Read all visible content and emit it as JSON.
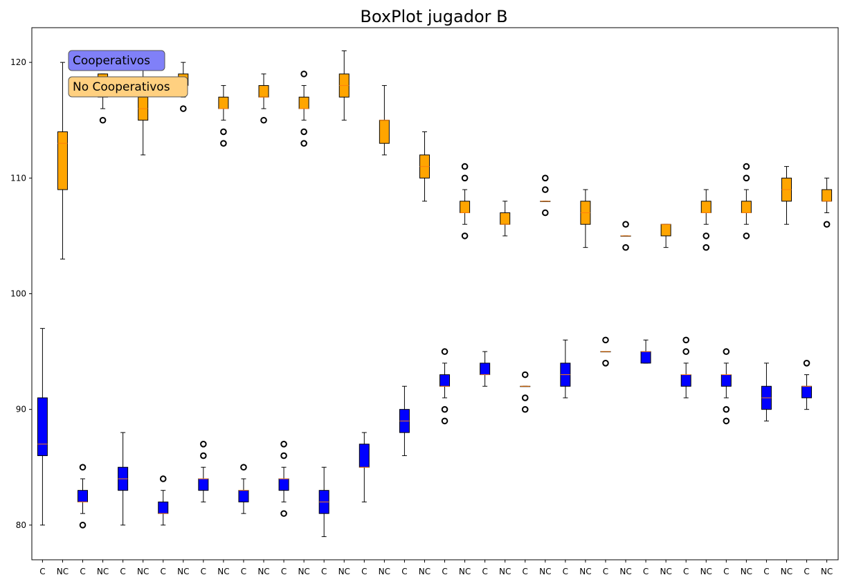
{
  "chart_data": {
    "type": "box",
    "title": "BoxPlot jugador B",
    "xlabel": "",
    "ylabel": "",
    "ylim": [
      77,
      123
    ],
    "yticks": [
      80,
      90,
      100,
      110,
      120
    ],
    "categories": [
      "C",
      "NC",
      "C",
      "NC",
      "C",
      "NC",
      "C",
      "NC",
      "C",
      "NC",
      "C",
      "NC",
      "C",
      "NC",
      "C",
      "NC",
      "C",
      "NC",
      "C",
      "NC",
      "C",
      "NC",
      "C",
      "NC",
      "C",
      "NC",
      "C",
      "NC",
      "C",
      "NC",
      "C",
      "NC",
      "C",
      "NC",
      "C",
      "NC",
      "C",
      "NC",
      "C",
      "NC"
    ],
    "colors": {
      "C": "#0000ff",
      "NC": "#ffa500",
      "median": "#ff7f0e",
      "legend_C": "#8080f8",
      "legend_NC": "#ffd080"
    },
    "legend": [
      {
        "key": "C",
        "label": "Cooperativos"
      },
      {
        "key": "NC",
        "label": "No Cooperativos"
      }
    ],
    "legend_position": "top-left",
    "boxes": [
      {
        "q1": 86,
        "med": 87,
        "q3": 91,
        "lo": 80,
        "hi": 97,
        "out": []
      },
      {
        "q1": 109,
        "med": 113,
        "q3": 114,
        "lo": 103,
        "hi": 120,
        "out": []
      },
      {
        "q1": 82,
        "med": 82,
        "q3": 83,
        "lo": 81,
        "hi": 84,
        "out": [
          85,
          80
        ]
      },
      {
        "q1": 117,
        "med": 118,
        "q3": 119,
        "lo": 116,
        "hi": 119,
        "out": [
          115,
          120
        ]
      },
      {
        "q1": 83,
        "med": 84,
        "q3": 85,
        "lo": 80,
        "hi": 88,
        "out": []
      },
      {
        "q1": 115,
        "med": 116,
        "q3": 117,
        "lo": 112,
        "hi": 120,
        "out": []
      },
      {
        "q1": 81,
        "med": 81,
        "q3": 82,
        "lo": 80,
        "hi": 83,
        "out": [
          84
        ]
      },
      {
        "q1": 118,
        "med": 118,
        "q3": 119,
        "lo": 117,
        "hi": 120,
        "out": [
          116
        ]
      },
      {
        "q1": 83,
        "med": 84,
        "q3": 84,
        "lo": 82,
        "hi": 85,
        "out": [
          86,
          87
        ]
      },
      {
        "q1": 116,
        "med": 116,
        "q3": 117,
        "lo": 115,
        "hi": 118,
        "out": [
          114,
          113
        ]
      },
      {
        "q1": 82,
        "med": 83,
        "q3": 83,
        "lo": 81,
        "hi": 84,
        "out": [
          85
        ]
      },
      {
        "q1": 117,
        "med": 117,
        "q3": 118,
        "lo": 116,
        "hi": 119,
        "out": [
          115
        ]
      },
      {
        "q1": 83,
        "med": 84,
        "q3": 84,
        "lo": 82,
        "hi": 85,
        "out": [
          86,
          87,
          81
        ]
      },
      {
        "q1": 116,
        "med": 116,
        "q3": 117,
        "lo": 115,
        "hi": 118,
        "out": [
          119,
          114,
          113
        ]
      },
      {
        "q1": 81,
        "med": 82,
        "q3": 83,
        "lo": 79,
        "hi": 85,
        "out": []
      },
      {
        "q1": 117,
        "med": 118,
        "q3": 119,
        "lo": 115,
        "hi": 121,
        "out": []
      },
      {
        "q1": 85,
        "med": 85,
        "q3": 87,
        "lo": 82,
        "hi": 88,
        "out": []
      },
      {
        "q1": 113,
        "med": 115,
        "q3": 115,
        "lo": 112,
        "hi": 118,
        "out": []
      },
      {
        "q1": 88,
        "med": 89,
        "q3": 90,
        "lo": 86,
        "hi": 92,
        "out": []
      },
      {
        "q1": 110,
        "med": 111,
        "q3": 112,
        "lo": 108,
        "hi": 114,
        "out": []
      },
      {
        "q1": 92,
        "med": 92,
        "q3": 93,
        "lo": 91,
        "hi": 94,
        "out": [
          95,
          90,
          89
        ]
      },
      {
        "q1": 107,
        "med": 107,
        "q3": 108,
        "lo": 106,
        "hi": 109,
        "out": [
          110,
          111,
          105
        ]
      },
      {
        "q1": 93,
        "med": 93,
        "q3": 94,
        "lo": 92,
        "hi": 95,
        "out": []
      },
      {
        "q1": 106,
        "med": 106,
        "q3": 107,
        "lo": 105,
        "hi": 108,
        "out": []
      },
      {
        "q1": 92,
        "med": 92,
        "q3": 92,
        "lo": 92,
        "hi": 92,
        "out": [
          93,
          91,
          90
        ]
      },
      {
        "q1": 108,
        "med": 108,
        "q3": 108,
        "lo": 108,
        "hi": 108,
        "out": [
          110,
          109,
          107
        ]
      },
      {
        "q1": 92,
        "med": 93,
        "q3": 94,
        "lo": 91,
        "hi": 96,
        "out": []
      },
      {
        "q1": 106,
        "med": 107,
        "q3": 108,
        "lo": 104,
        "hi": 109,
        "out": []
      },
      {
        "q1": 95,
        "med": 95,
        "q3": 95,
        "lo": 95,
        "hi": 95,
        "out": [
          96,
          94
        ]
      },
      {
        "q1": 105,
        "med": 105,
        "q3": 105,
        "lo": 105,
        "hi": 105,
        "out": [
          106,
          104
        ]
      },
      {
        "q1": 94,
        "med": 95,
        "q3": 95,
        "lo": 94,
        "hi": 96,
        "out": []
      },
      {
        "q1": 105,
        "med": 106,
        "q3": 106,
        "lo": 104,
        "hi": 106,
        "out": []
      },
      {
        "q1": 92,
        "med": 93,
        "q3": 93,
        "lo": 91,
        "hi": 94,
        "out": [
          95,
          96
        ]
      },
      {
        "q1": 107,
        "med": 107,
        "q3": 108,
        "lo": 106,
        "hi": 109,
        "out": [
          105,
          104
        ]
      },
      {
        "q1": 92,
        "med": 93,
        "q3": 93,
        "lo": 91,
        "hi": 94,
        "out": [
          95,
          90,
          89
        ]
      },
      {
        "q1": 107,
        "med": 107,
        "q3": 108,
        "lo": 106,
        "hi": 109,
        "out": [
          110,
          111,
          105
        ]
      },
      {
        "q1": 90,
        "med": 91,
        "q3": 92,
        "lo": 89,
        "hi": 94,
        "out": []
      },
      {
        "q1": 108,
        "med": 109,
        "q3": 110,
        "lo": 106,
        "hi": 111,
        "out": []
      },
      {
        "q1": 91,
        "med": 92,
        "q3": 92,
        "lo": 90,
        "hi": 93,
        "out": [
          94
        ]
      },
      {
        "q1": 108,
        "med": 108,
        "q3": 109,
        "lo": 107,
        "hi": 110,
        "out": [
          106
        ]
      }
    ]
  }
}
